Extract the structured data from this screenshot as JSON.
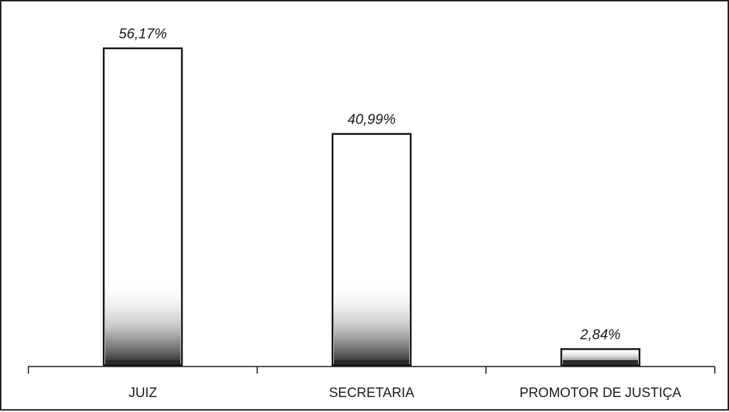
{
  "chart_data": {
    "type": "bar",
    "categories": [
      "JUIZ",
      "SECRETARIA",
      "PROMOTOR DE JUSTIÇA"
    ],
    "values": [
      56.17,
      40.99,
      2.84
    ],
    "data_labels": [
      "56,17%",
      "40,99%",
      "2,84%"
    ],
    "title": "",
    "xlabel": "",
    "ylabel": "",
    "ylim": [
      0,
      60
    ],
    "grid": false,
    "legend": "none",
    "colors": {
      "bar_outline": "#111111",
      "bar_fill": "#ffffff",
      "bar_texture": "#2a2a2a",
      "axis": "#111111"
    }
  }
}
